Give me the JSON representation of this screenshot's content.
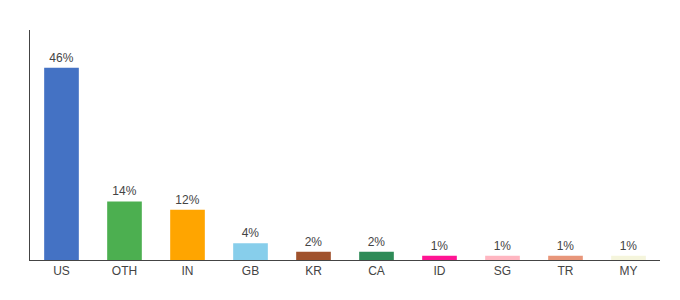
{
  "chart_data": {
    "type": "bar",
    "categories": [
      "US",
      "OTH",
      "IN",
      "GB",
      "KR",
      "CA",
      "ID",
      "SG",
      "TR",
      "MY"
    ],
    "values": [
      46,
      14,
      12,
      4,
      2,
      2,
      1,
      1,
      1,
      1
    ],
    "value_labels": [
      "46%",
      "14%",
      "12%",
      "4%",
      "2%",
      "2%",
      "1%",
      "1%",
      "1%",
      "1%"
    ],
    "colors": [
      "#4472C4",
      "#4CAF50",
      "#FFA500",
      "#87CEEB",
      "#A0522D",
      "#2E8B57",
      "#FF1493",
      "#FFB6C1",
      "#E8967A",
      "#F5F5DC"
    ],
    "ylim": [
      0,
      55
    ],
    "data_labels": true,
    "tick_labels": "x",
    "grid": false
  }
}
